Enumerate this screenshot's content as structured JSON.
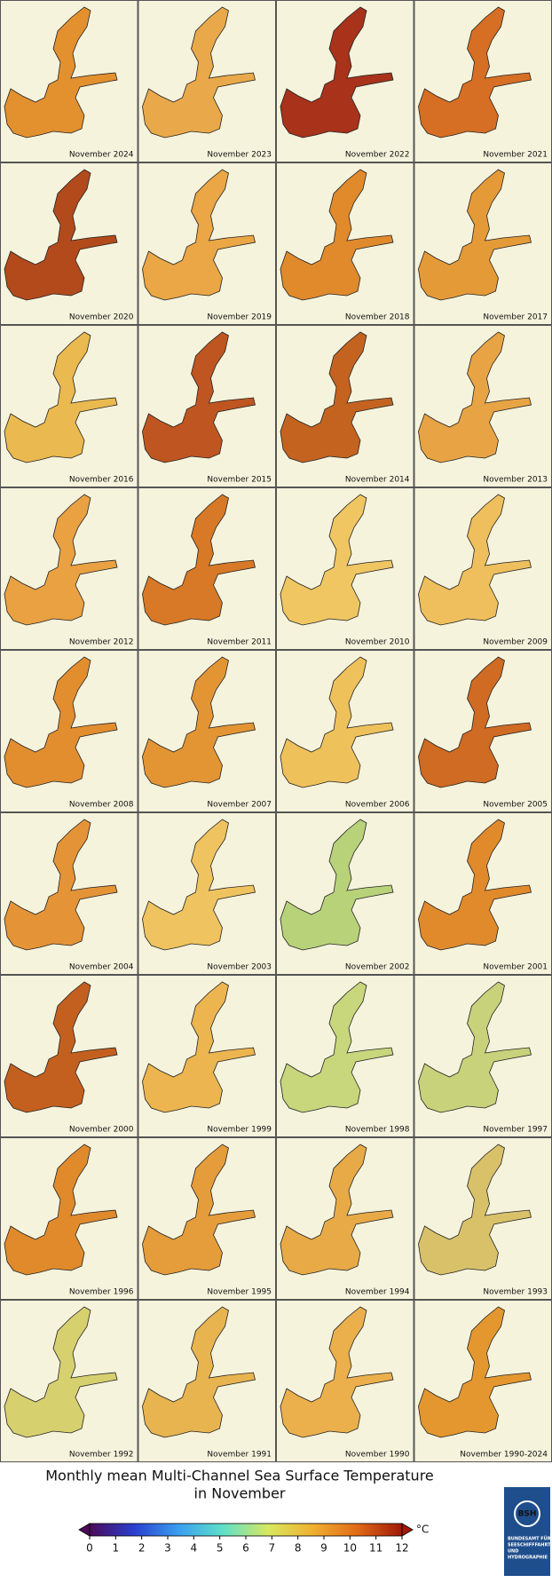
{
  "panels": [
    {
      "label": "November 2024",
      "color": "#e3902f"
    },
    {
      "label": "November 2023",
      "color": "#e9a94a"
    },
    {
      "label": "November 2022",
      "color": "#a8321a"
    },
    {
      "label": "November 2021",
      "color": "#d66e24"
    },
    {
      "label": "November 2020",
      "color": "#b24a1c"
    },
    {
      "label": "November 2019",
      "color": "#eba645"
    },
    {
      "label": "November 2018",
      "color": "#e08a2c"
    },
    {
      "label": "November 2017",
      "color": "#e59a38"
    },
    {
      "label": "November 2016",
      "color": "#eab94f"
    },
    {
      "label": "November 2015",
      "color": "#bf5520"
    },
    {
      "label": "November 2014",
      "color": "#c4631f"
    },
    {
      "label": "November 2013",
      "color": "#e8a444"
    },
    {
      "label": "November 2012",
      "color": "#e9a142"
    },
    {
      "label": "November 2011",
      "color": "#d77926"
    },
    {
      "label": "November 2010",
      "color": "#efc662"
    },
    {
      "label": "November 2009",
      "color": "#eebf5c"
    },
    {
      "label": "November 2008",
      "color": "#e28e2f"
    },
    {
      "label": "November 2007",
      "color": "#e39534"
    },
    {
      "label": "November 2006",
      "color": "#eec15b"
    },
    {
      "label": "November 2005",
      "color": "#cf6b22"
    },
    {
      "label": "November 2004",
      "color": "#e49437"
    },
    {
      "label": "November 2003",
      "color": "#efc35f"
    },
    {
      "label": "November 2002",
      "color": "#b8d27a"
    },
    {
      "label": "November 2001",
      "color": "#e08a2c"
    },
    {
      "label": "November 2000",
      "color": "#c4601f"
    },
    {
      "label": "November 1999",
      "color": "#ecb54f"
    },
    {
      "label": "November 1998",
      "color": "#c8d67c"
    },
    {
      "label": "November 1997",
      "color": "#c7d27a"
    },
    {
      "label": "November 1996",
      "color": "#e08a2c"
    },
    {
      "label": "November 1995",
      "color": "#e59c3a"
    },
    {
      "label": "November 1994",
      "color": "#e8aa46"
    },
    {
      "label": "November 1993",
      "color": "#d9c16a"
    },
    {
      "label": "November 1992",
      "color": "#d7d06f"
    },
    {
      "label": "November 1991",
      "color": "#e8b450"
    },
    {
      "label": "November 1990",
      "color": "#ebb04c"
    },
    {
      "label": "November 1990-2024",
      "color": "#e4972f"
    }
  ],
  "legend": {
    "title": [
      "Monthly mean Multi-Channel Sea Surface Temperature",
      "in November"
    ],
    "lim": [
      0,
      12
    ],
    "ticks": [
      0,
      1,
      2,
      3,
      4,
      5,
      6,
      7,
      8,
      9,
      10,
      11,
      12
    ],
    "unit": "°C",
    "colors": [
      "#4b0a5a",
      "#2a3fd0",
      "#3aa0f0",
      "#5fe0c8",
      "#d8e860",
      "#f0b030",
      "#e06a18",
      "#a01808"
    ]
  },
  "logo": {
    "mark": "BSH",
    "lines": [
      "BUNDESAMT FÜR",
      "SEESCHIFFFAHRT",
      "UND",
      "HYDROGRAPHIE"
    ]
  }
}
